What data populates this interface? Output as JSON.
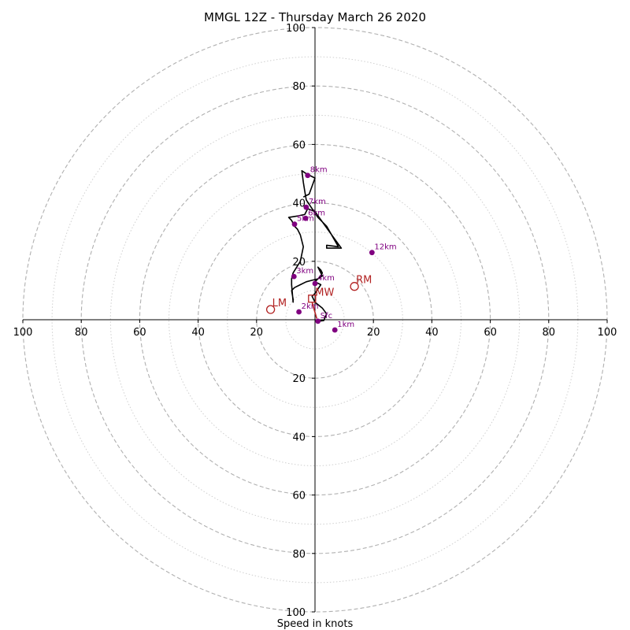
{
  "chart_data": {
    "type": "hodograph",
    "title": "MMGL 12Z - Thursday March 26 2020",
    "xlabel": "Speed in knots",
    "range": [
      -100,
      100
    ],
    "major_rings": [
      20,
      40,
      60,
      80,
      100
    ],
    "minor_rings": [
      10,
      30,
      50,
      70,
      90
    ],
    "axis_ticks": [
      "100",
      "80",
      "60",
      "40",
      "20",
      "20",
      "40",
      "60",
      "80",
      "100"
    ],
    "y_ticks_top": [
      "100",
      "80",
      "60",
      "40",
      "20"
    ],
    "y_ticks_bottom": [
      "20",
      "40",
      "60",
      "80",
      "100"
    ],
    "colors": {
      "trace": "#000000",
      "height_points": "#800080",
      "motion": "#b22222",
      "rings": "#b0b0b0"
    },
    "trace": [
      [
        1,
        -0.5
      ],
      [
        3,
        -0.3
      ],
      [
        4,
        2
      ],
      [
        2.5,
        4
      ],
      [
        0,
        6
      ],
      [
        -1,
        8
      ],
      [
        0,
        9
      ],
      [
        2,
        12
      ],
      [
        0,
        13
      ],
      [
        2,
        15
      ],
      [
        2.5,
        16
      ],
      [
        2,
        17
      ],
      [
        1,
        18
      ],
      [
        2.5,
        15
      ],
      [
        1,
        14
      ],
      [
        -1,
        13.5
      ],
      [
        -3,
        13
      ],
      [
        -5,
        12
      ],
      [
        -7,
        11
      ],
      [
        -8,
        10
      ],
      [
        -7.5,
        7
      ],
      [
        -7.5,
        6
      ],
      [
        -8,
        12
      ],
      [
        -8,
        14
      ],
      [
        -7.5,
        16
      ],
      [
        -5,
        20
      ],
      [
        -4,
        25
      ],
      [
        -5,
        29
      ],
      [
        -6,
        31
      ],
      [
        -7,
        32
      ],
      [
        -8,
        34
      ],
      [
        -9,
        35
      ],
      [
        -6,
        35.5
      ],
      [
        -3.5,
        36
      ],
      [
        -2.5,
        38
      ],
      [
        0,
        37
      ],
      [
        5,
        30
      ],
      [
        9,
        24.5
      ],
      [
        4,
        24.5
      ],
      [
        4,
        25.5
      ],
      [
        8,
        25
      ],
      [
        4,
        32
      ],
      [
        1,
        35
      ],
      [
        -3,
        41
      ],
      [
        -3.5,
        44
      ],
      [
        -4,
        47
      ],
      [
        -4.5,
        51
      ],
      [
        -3,
        50
      ],
      [
        0,
        48.5
      ],
      [
        -2,
        43
      ],
      [
        -4,
        42
      ]
    ],
    "height_points": [
      {
        "label": "Sfc",
        "u": 1,
        "v": -0.5
      },
      {
        "label": "1km",
        "u": 6.8,
        "v": -3.5
      },
      {
        "label": "2km",
        "u": -5.5,
        "v": 2.7
      },
      {
        "label": "3km",
        "u": -7.2,
        "v": 14.8
      },
      {
        "label": "4km",
        "u": 0,
        "v": 12.4
      },
      {
        "label": "5km",
        "u": -7,
        "v": 32.7
      },
      {
        "label": "6km",
        "u": -3.2,
        "v": 34.7
      },
      {
        "label": "7km",
        "u": -3,
        "v": 38.5
      },
      {
        "label": "8km",
        "u": -2.5,
        "v": 49.4
      },
      {
        "label": "12km",
        "u": 19.5,
        "v": 23
      }
    ],
    "motion": {
      "rm": {
        "label": "RM",
        "u": 13.5,
        "v": 11.4
      },
      "lm": {
        "label": "LM",
        "u": -15.2,
        "v": 3.5
      },
      "mw": {
        "label": "MW",
        "u": -1,
        "v": 7.2
      }
    }
  }
}
